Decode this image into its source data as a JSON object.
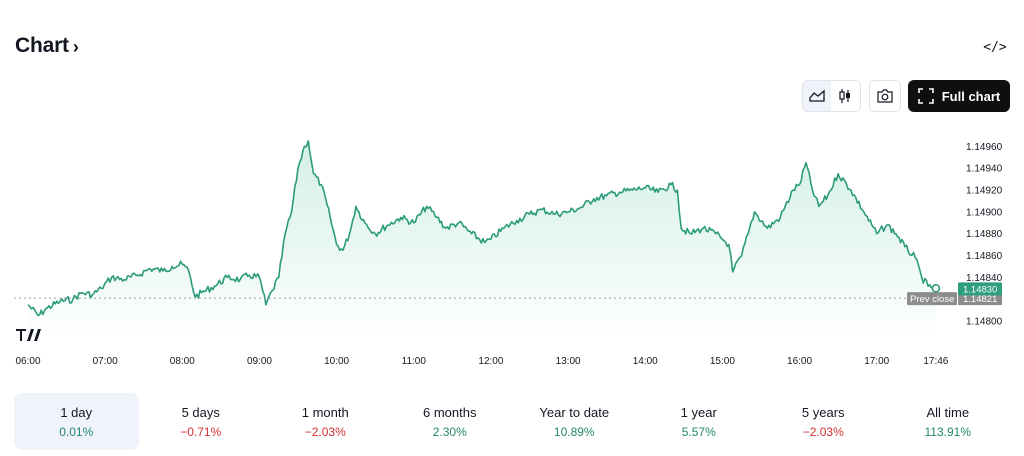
{
  "header": {
    "title": "Chart",
    "chevron": "›",
    "embed_icon": "</>"
  },
  "toolbar": {
    "full_chart_label": "Full chart",
    "icons": [
      "area-chart-icon",
      "candles-icon",
      "camera-icon",
      "fullscreen-icon"
    ]
  },
  "colors": {
    "line": "#2b9b7c",
    "fill_top": "#cfeee3",
    "price_badge": "#2e9e7d",
    "prev_badge": "#8c8c8c",
    "positive": "#22876e",
    "negative": "#d32f2f"
  },
  "chart_data": {
    "type": "area",
    "y_ticks": [
      "1.14960",
      "1.14940",
      "1.14920",
      "1.14900",
      "1.14880",
      "1.14860",
      "1.14840",
      "1.14800"
    ],
    "x_ticks": [
      "06:00",
      "07:00",
      "08:00",
      "09:00",
      "10:00",
      "11:00",
      "12:00",
      "13:00",
      "14:00",
      "15:00",
      "16:00",
      "17:00",
      "17:46"
    ],
    "ylim": [
      1.1479,
      1.14975
    ],
    "xlim": [
      "06:00",
      "17:50"
    ],
    "last_price": "1.14830",
    "prev_close_label": "Prev close",
    "prev_close": "1.14821",
    "series": [
      {
        "points": [
          [
            "06:00",
            1.14815
          ],
          [
            "06:08",
            1.14805
          ],
          [
            "06:15",
            1.14812
          ],
          [
            "06:25",
            1.14818
          ],
          [
            "06:35",
            1.1482
          ],
          [
            "06:42",
            1.14826
          ],
          [
            "06:50",
            1.14824
          ],
          [
            "06:57",
            1.1483
          ],
          [
            "07:05",
            1.1484
          ],
          [
            "07:15",
            1.14838
          ],
          [
            "07:25",
            1.14842
          ],
          [
            "07:35",
            1.14848
          ],
          [
            "07:45",
            1.14846
          ],
          [
            "07:52",
            1.1485
          ],
          [
            "08:00",
            1.14852
          ],
          [
            "08:05",
            1.14846
          ],
          [
            "08:10",
            1.14822
          ],
          [
            "08:15",
            1.14826
          ],
          [
            "08:25",
            1.14832
          ],
          [
            "08:35",
            1.1484
          ],
          [
            "08:45",
            1.14838
          ],
          [
            "08:52",
            1.14842
          ],
          [
            "09:00",
            1.1484
          ],
          [
            "09:05",
            1.14815
          ],
          [
            "09:10",
            1.14828
          ],
          [
            "09:15",
            1.1484
          ],
          [
            "09:20",
            1.1488
          ],
          [
            "09:25",
            1.149
          ],
          [
            "09:30",
            1.1494
          ],
          [
            "09:35",
            1.1496
          ],
          [
            "09:38",
            1.14965
          ],
          [
            "09:42",
            1.14935
          ],
          [
            "09:48",
            1.14925
          ],
          [
            "09:55",
            1.14895
          ],
          [
            "10:00",
            1.1487
          ],
          [
            "10:05",
            1.14865
          ],
          [
            "10:10",
            1.1488
          ],
          [
            "10:15",
            1.14905
          ],
          [
            "10:22",
            1.1489
          ],
          [
            "10:30",
            1.1488
          ],
          [
            "10:40",
            1.14888
          ],
          [
            "10:50",
            1.14895
          ],
          [
            "11:00",
            1.1489
          ],
          [
            "11:10",
            1.14905
          ],
          [
            "11:18",
            1.14895
          ],
          [
            "11:25",
            1.14885
          ],
          [
            "11:35",
            1.1489
          ],
          [
            "11:45",
            1.1488
          ],
          [
            "11:55",
            1.14872
          ],
          [
            "12:00",
            1.14875
          ],
          [
            "12:10",
            1.14885
          ],
          [
            "12:20",
            1.14892
          ],
          [
            "12:30",
            1.14898
          ],
          [
            "12:40",
            1.14902
          ],
          [
            "12:50",
            1.14898
          ],
          [
            "13:00",
            1.149
          ],
          [
            "13:10",
            1.14904
          ],
          [
            "13:20",
            1.14912
          ],
          [
            "13:30",
            1.14915
          ],
          [
            "13:40",
            1.14918
          ],
          [
            "13:50",
            1.1492
          ],
          [
            "14:00",
            1.14922
          ],
          [
            "14:10",
            1.14918
          ],
          [
            "14:20",
            1.14925
          ],
          [
            "14:25",
            1.1492
          ],
          [
            "14:28",
            1.14885
          ],
          [
            "14:35",
            1.1488
          ],
          [
            "14:45",
            1.14885
          ],
          [
            "14:55",
            1.1488
          ],
          [
            "15:00",
            1.14875
          ],
          [
            "15:05",
            1.1487
          ],
          [
            "15:08",
            1.14845
          ],
          [
            "15:15",
            1.1486
          ],
          [
            "15:20",
            1.1488
          ],
          [
            "15:25",
            1.149
          ],
          [
            "15:35",
            1.14885
          ],
          [
            "15:45",
            1.14895
          ],
          [
            "15:55",
            1.1492
          ],
          [
            "16:00",
            1.14925
          ],
          [
            "16:05",
            1.14945
          ],
          [
            "16:10",
            1.1492
          ],
          [
            "16:15",
            1.14905
          ],
          [
            "16:22",
            1.14915
          ],
          [
            "16:30",
            1.14935
          ],
          [
            "16:40",
            1.1492
          ],
          [
            "16:50",
            1.149
          ],
          [
            "17:00",
            1.1488
          ],
          [
            "17:08",
            1.14888
          ],
          [
            "17:15",
            1.1488
          ],
          [
            "17:22",
            1.14868
          ],
          [
            "17:30",
            1.14858
          ],
          [
            "17:35",
            1.1484
          ],
          [
            "17:40",
            1.14832
          ],
          [
            "17:46",
            1.1483
          ]
        ]
      }
    ]
  },
  "periods": [
    {
      "label": "1 day",
      "change": "0.01%",
      "positive": true
    },
    {
      "label": "5 days",
      "change": "−0.71%",
      "positive": false
    },
    {
      "label": "1 month",
      "change": "−2.03%",
      "positive": false
    },
    {
      "label": "6 months",
      "change": "2.30%",
      "positive": true
    },
    {
      "label": "Year to date",
      "change": "10.89%",
      "positive": true
    },
    {
      "label": "1 year",
      "change": "5.57%",
      "positive": true
    },
    {
      "label": "5 years",
      "change": "−2.03%",
      "positive": false
    },
    {
      "label": "All time",
      "change": "113.91%",
      "positive": true
    }
  ]
}
